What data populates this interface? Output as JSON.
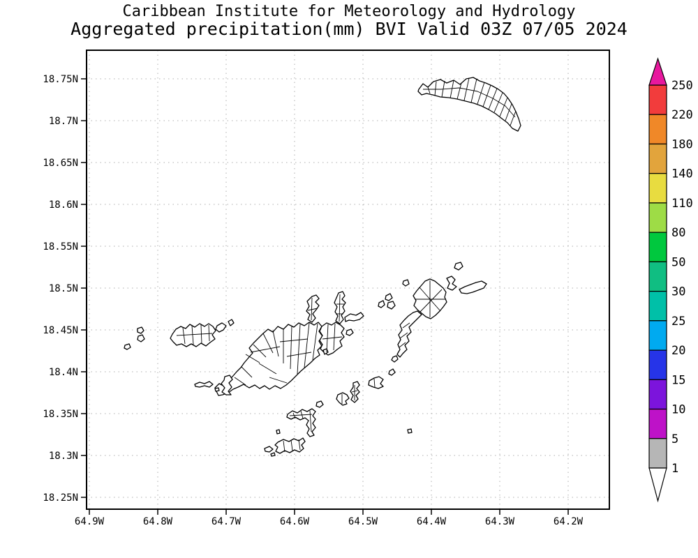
{
  "header": {
    "line1": "Caribbean Institute for Meteorology and Hydrology",
    "line2": "Aggregated precipitation(mm) BVI Valid 03Z 07/05 2024"
  },
  "chart_data": {
    "type": "map",
    "title": "Aggregated precipitation(mm) BVI Valid 03Z 07/05 2024",
    "organization": "Caribbean Institute for Meteorology and Hydrology",
    "region": "British Virgin Islands (BVI)",
    "grid": "dotted",
    "y_axis": {
      "ticks": [
        "18.75N",
        "18.7N",
        "18.65N",
        "18.6N",
        "18.55N",
        "18.5N",
        "18.45N",
        "18.4N",
        "18.35N",
        "18.3N",
        "18.25N"
      ]
    },
    "x_axis": {
      "ticks": [
        "64.9W",
        "64.8W",
        "64.7W",
        "64.6W",
        "64.5W",
        "64.4W",
        "64.3W",
        "64.2W"
      ]
    },
    "colorbar": {
      "unit": "mm",
      "labels": [
        "250",
        "220",
        "180",
        "140",
        "110",
        "80",
        "50",
        "30",
        "25",
        "20",
        "15",
        "10",
        "5",
        "1"
      ],
      "segment_colors": [
        "#f23c3c",
        "#f08828",
        "#e2a43c",
        "#e8dc40",
        "#9edc46",
        "#00c83e",
        "#10be82",
        "#00c0a8",
        "#00aaf0",
        "#2634e8",
        "#7c14dc",
        "#be12c8",
        "#b6b6b6"
      ],
      "arrow_top_color": "#e8189e",
      "arrow_bottom_color": "#ffffff"
    },
    "islands": [
      {
        "n": "anegada",
        "p": "600,128 606,120 613,125 621,117 631,114 640,119 650,115 659,121 668,113 678,111 687,116 696,119 705,123 714,128 722,134 728,141 734,150 739,160 743,170 746,180 742,188 734,184 727,176 719,170 710,163 700,157 690,152 679,148 667,145 655,142 643,140 631,139 620,136 611,134 604,136 599,131"
      },
      {
        "n": "tortola",
        "p": "311,563 308,556 314,550 320,553 326,546 333,540 339,533 345,527 350,520 356,513 362,506 357,499 363,492 370,485 377,478 384,472 391,476 398,468 406,472 413,465 421,469 428,463 436,467 443,462 450,466 456,462 461,468 457,475 462,482 457,489 461,496 455,502 458,509 451,514 445,520 438,526 431,532 424,539 417,546 410,552 402,557 394,553 386,558 379,553 372,557 365,552 357,556 349,551 341,555 334,558 327,563 319,566 313,567"
      },
      {
        "n": "beef-island",
        "p": "461,468 468,463 475,466 481,462 488,466 493,471 489,477 493,483 487,489 490,496 483,501 477,506 470,509 464,505 459,500 462,494 458,488 462,481 458,475"
      },
      {
        "n": "scrub-island",
        "p": "494,455 502,450 510,452 517,448 521,453 515,458 507,460 500,459 495,461"
      },
      {
        "n": "marina-cay",
        "p": "497,474 503,472 506,477 501,481 496,479"
      },
      {
        "n": "guana-island",
        "p": "447,425 453,423 457,428 452,433 457,438 453,444 448,450 452,456 447,462 441,458 444,451 439,446 443,439 440,432"
      },
      {
        "n": "great-camanoe",
        "p": "485,420 491,418 494,424 490,429 495,434 491,440 494,446 489,452 492,458 487,464 481,460 484,453 480,447 483,440 479,434 482,427"
      },
      {
        "n": "dog-island-west",
        "p": "543,434 549,431 551,437 546,441 542,439"
      },
      {
        "n": "dog-island-george",
        "p": "553,424 559,421 562,427 557,431 552,429"
      },
      {
        "n": "dog-island-great",
        "p": "556,434 563,432 566,438 561,443 555,440"
      },
      {
        "n": "virgin-gorda",
        "p": "609,403 616,400 623,403 629,408 635,413 639,419 637,426 640,433 635,440 630,446 624,452 617,457 610,454 604,449 598,444 593,438 596,431 592,424 597,417 603,410"
      },
      {
        "n": "virgin-gorda-tail",
        "p": "604,451 598,457 592,463 586,469 589,476 583,482 586,489 580,495 583,501 577,507 573,512 569,508 573,501 570,494 574,487 571,480 576,473 573,466 579,459 585,453 592,448 598,446"
      },
      {
        "n": "mosquito-island",
        "p": "578,403 584,401 586,407 581,410 577,407"
      },
      {
        "n": "prickly-pear",
        "p": "640,399 647,396 652,401 648,407 654,411 648,416 641,413 644,406"
      },
      {
        "n": "necker-island",
        "p": "653,378 660,376 663,382 657,387 651,384"
      },
      {
        "n": "eustatia-chain",
        "p": "658,415 666,411 674,408 682,405 690,403 697,407 693,413 685,416 677,419 669,421 661,420"
      },
      {
        "n": "jost-van-dyke",
        "p": "247,479 252,472 259,468 266,471 272,465 279,469 286,464 293,468 299,464 305,468 309,474 304,480 308,486 301,491 295,496 288,492 281,497 274,493 267,497 260,493 253,495 248,490 244,485"
      },
      {
        "n": "little-jost-van-dyke",
        "p": "311,467 318,463 324,467 320,473 314,476 309,472"
      },
      {
        "n": "green-cay",
        "p": "327,461 332,458 335,463 330,467"
      },
      {
        "n": "sandy-cay-1",
        "p": "197,471 203,469 206,474 202,478 197,476"
      },
      {
        "n": "sandy-cay-2",
        "p": "198,482 204,480 207,486 202,490 197,487"
      },
      {
        "n": "sandy-spit",
        "p": "179,495 185,493 187,498 182,501 178,499"
      },
      {
        "n": "little-thatch",
        "p": "279,551 286,548 293,550 300,547 305,551 300,555 293,553 286,555 280,554"
      },
      {
        "n": "thatch-speck",
        "p": "308,557 313,556 314,560 309,561"
      },
      {
        "n": "frenchmans-cay",
        "p": "322,540 329,538 333,544 328,549 332,555 327,561 331,566 324,566 318,562 322,556 317,550 321,545"
      },
      {
        "n": "buck-island",
        "p": "463,502 468,500 470,505 465,508"
      },
      {
        "n": "norman-island",
        "p": "398,634 406,630 414,633 421,629 428,632 434,628 437,633 432,638 435,643 429,648 422,645 415,649 408,646 401,650 395,647 398,641 394,638"
      },
      {
        "n": "norman-west",
        "p": "379,643 386,640 391,644 386,648 380,647"
      },
      {
        "n": "norman-spit",
        "p": "388,651 393,649 394,653 389,654"
      },
      {
        "n": "pelican-island",
        "p": "396,617 400,616 401,621 397,622"
      },
      {
        "n": "peter-island",
        "p": "412,594 419,589 426,592 433,587 440,590 447,586 452,590 448,596 452,601 448,607 452,613 447,619 450,624 444,626 440,621 443,615 439,609 442,603 437,599 430,602 423,598 417,601 411,598"
      },
      {
        "n": "dead-chest",
        "p": "454,577 460,575 463,580 458,584 453,582"
      },
      {
        "n": "salt-island",
        "p": "484,566 491,563 497,566 500,571 495,575 497,579 491,581 486,577 482,572"
      },
      {
        "n": "cooper-island",
        "p": "506,549 512,547 515,552 511,557 515,562 510,567 513,572 508,577 503,573 506,567 502,561 506,555"
      },
      {
        "n": "ginger-island",
        "p": "529,546 536,542 543,540 549,544 545,550 549,554 542,557 535,555 528,552"
      },
      {
        "n": "round-rock",
        "p": "558,532 563,529 566,534 561,538 557,536"
      },
      {
        "n": "fallen-jerusalem",
        "p": "563,512 568,510 570,515 565,519 561,516"
      },
      {
        "n": "carrot-rock",
        "p": "584,616 589,615 590,620 585,621"
      }
    ],
    "mesh": [
      "613,125 616,134",
      "625,117 623,137",
      "637,116 633,139",
      "650,115 645,141",
      "661,119 655,142",
      "672,112 665,144",
      "683,113 675,147",
      "694,118 684,149",
      "703,122 692,153",
      "712,127 700,157",
      "720,133 708,161",
      "727,140 716,167",
      "733,149 724,173",
      "739,159 731,180",
      "606,128 632,128 658,126 684,131 706,141 724,152 738,168",
      "352,508 372,520",
      "363,494 381,512",
      "377,478 391,506",
      "391,474 399,511",
      "406,471 406,521",
      "418,468 416,529",
      "430,465 426,536",
      "443,463 436,527",
      "455,464 448,516",
      "371,521 396,536",
      "386,541 411,549",
      "359,505 401,497",
      "401,490 441,486",
      "411,511 446,505",
      "346,526 361,541",
      "336,541 352,552",
      "470,465 468,505",
      "480,464 478,502",
      "462,486 490,483",
      "262,470 265,493",
      "275,467 277,494",
      "288,466 289,493",
      "299,466 300,489",
      "253,481 304,478",
      "616,402 616,455",
      "595,429 638,429",
      "601,412 631,446",
      "633,415 602,447",
      "587,463 577,470",
      "584,477 573,485",
      "581,491 572,498",
      "420,592 423,600",
      "431,589 434,600",
      "444,589 446,619",
      "415,596 447,594",
      "406,632 408,648",
      "417,631 419,646",
      "428,630 430,645",
      "487,422 486,461",
      "482,436 493,436",
      "481,450 492,450",
      "447,427 446,459",
      "441,445 455,442",
      "508,552 508,574",
      "504,562 512,560",
      "490,565 490,579",
      "536,543 537,555"
    ]
  }
}
